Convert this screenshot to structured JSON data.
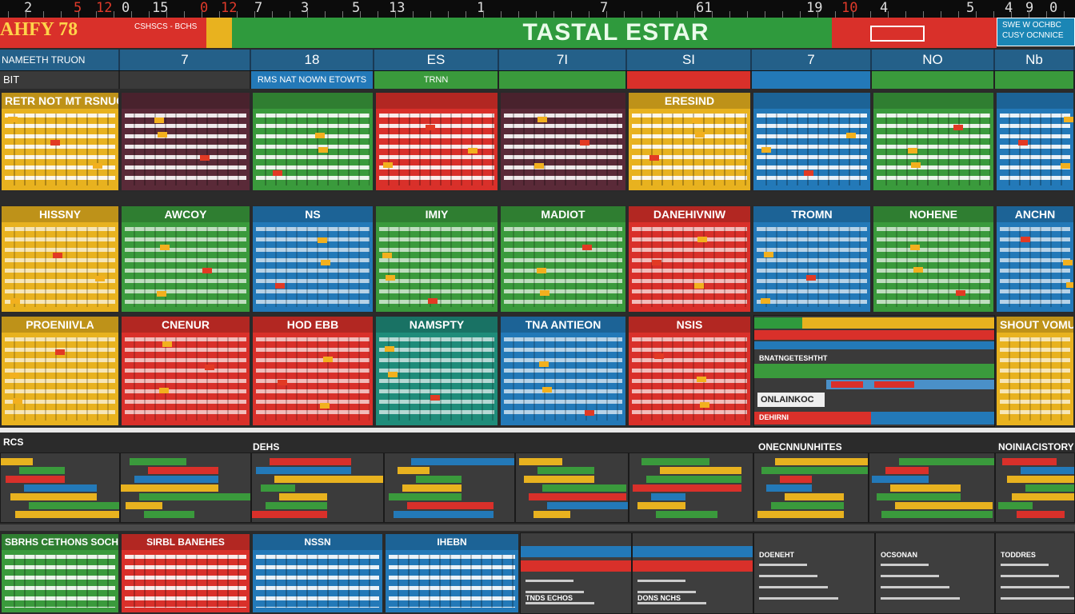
{
  "ruler": {
    "ticks": [
      {
        "text": "2",
        "red": false
      },
      {
        "text": "5",
        "red": true
      },
      {
        "text": "12",
        "red": true
      },
      {
        "text": "0",
        "red": false
      },
      {
        "text": "15",
        "red": false
      },
      {
        "text": "0",
        "red": true
      },
      {
        "text": "12",
        "red": true
      },
      {
        "text": "7",
        "red": false
      },
      {
        "text": "3",
        "red": false
      },
      {
        "text": "5",
        "red": false
      },
      {
        "text": "13",
        "red": false
      },
      {
        "text": "1",
        "red": false
      },
      {
        "text": "7",
        "red": false
      },
      {
        "text": "61",
        "red": false
      },
      {
        "text": "19",
        "red": false
      },
      {
        "text": "10",
        "red": true
      },
      {
        "text": "4",
        "red": false
      },
      {
        "text": "5",
        "red": false
      },
      {
        "text": "4",
        "red": false
      },
      {
        "text": "9",
        "red": false
      },
      {
        "text": "0",
        "red": false
      }
    ]
  },
  "titlebar": {
    "brand": "AHFY 78",
    "brand_sub": "CSHSCS - BCHS",
    "title": "TASTAL ESTAR",
    "corner_text": "SWE W OCHBC CUSY OCNNICE"
  },
  "colors": {
    "red": "#d9302a",
    "green": "#3a9a3c",
    "blue": "#2379b8",
    "yellow": "#e8b21f",
    "maroon": "#5a2a38",
    "teal": "#1f8c7a",
    "dark": "#3a3a3a"
  },
  "columns": {
    "label": "NAMEETH TRUON",
    "headers": [
      "7",
      "18",
      "ES",
      "7I",
      "SI",
      "7",
      "NO",
      "Nb"
    ]
  },
  "stripes": [
    "BIT",
    "",
    "RMS NAT NOWN ETOWTS",
    "TRNN",
    "",
    "",
    "",
    ""
  ],
  "calendars": [
    {
      "title": "RETR NOT MT RSNUCS FEETH",
      "color": "yellow"
    },
    {
      "title": "",
      "color": "maroon"
    },
    {
      "title": "",
      "color": "green"
    },
    {
      "title": "",
      "color": "red"
    },
    {
      "title": "",
      "color": "maroon"
    },
    {
      "title": "ERESIND",
      "color": "yellow"
    },
    {
      "title": "",
      "color": "blue"
    },
    {
      "title": "",
      "color": "green"
    },
    {
      "title": "",
      "color": "blue"
    },
    {
      "title": "HISSNY",
      "color": "yellow"
    },
    {
      "title": "AWCOY",
      "color": "green"
    },
    {
      "title": "NS",
      "color": "blue"
    },
    {
      "title": "IMIY",
      "color": "green"
    },
    {
      "title": "MADIOT",
      "color": "green"
    },
    {
      "title": "DANEHIVNIW",
      "color": "red"
    },
    {
      "title": "TROMN",
      "color": "blue"
    },
    {
      "title": "NOHENE",
      "color": "green"
    },
    {
      "title": "ANCHN",
      "color": "blue"
    },
    {
      "title": "PROENIIVLA",
      "color": "yellow"
    },
    {
      "title": "CNENUR",
      "color": "red"
    },
    {
      "title": "HOD EBB",
      "color": "red"
    },
    {
      "title": "NAMSPTY",
      "color": "teal"
    },
    {
      "title": "TNA ANTIEON",
      "color": "blue"
    },
    {
      "title": "NSIS",
      "color": "red"
    },
    {
      "title": "SHOUT VOMU",
      "color": "yellow"
    }
  ],
  "middle_panel": {
    "label1": "BNATNGETESHTHT",
    "label2": "ONLAINKOC",
    "label3": "DEHIRNI"
  },
  "sections": {
    "left": "RCS",
    "mid": "DEHS",
    "right1": "ONECNNUNHITES",
    "right2": "NOINIACISTORY"
  },
  "bottom_calendars": [
    {
      "title": "SBRHS CETHONS SOCHS",
      "color": "green"
    },
    {
      "title": "SIRBL BANEHES",
      "color": "red"
    },
    {
      "title": "NSSN",
      "color": "blue"
    },
    {
      "title": "IHEBN",
      "color": "blue"
    }
  ],
  "bottom_panels": [
    "TNDS ECHOS",
    "DONS NCHS",
    "DOENEHT",
    "OCSONAN",
    "TODDRES"
  ]
}
